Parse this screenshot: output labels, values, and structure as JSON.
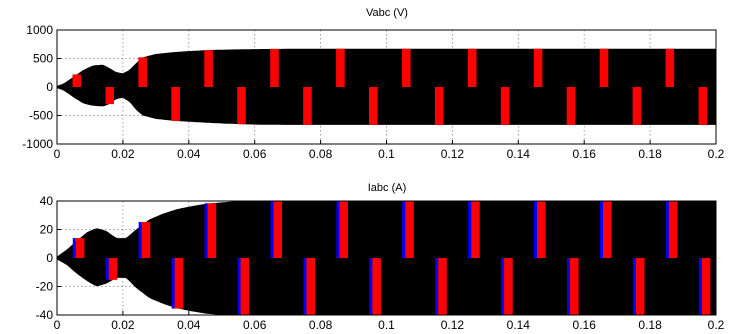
{
  "chart_data": [
    {
      "type": "line",
      "title": "Vabc (V)",
      "xlim": [
        0,
        0.2
      ],
      "ylim": [
        -1000,
        1000
      ],
      "x_ticks": [
        "0",
        "0.02",
        "0.04",
        "0.06",
        "0.08",
        "0.1",
        "0.12",
        "0.14",
        "0.16",
        "0.18",
        "0.2"
      ],
      "y_ticks": [
        "-1000",
        "-500",
        "0",
        "500",
        "1000"
      ],
      "grid": true,
      "fundamental_hz": 50,
      "envelope": {
        "t": [
          0,
          0.002,
          0.005,
          0.008,
          0.011,
          0.014,
          0.016,
          0.018,
          0.02,
          0.022,
          0.024,
          0.026,
          0.03,
          0.035,
          0.04,
          0.045,
          0.05,
          0.055,
          0.06,
          0.07,
          0.08,
          0.2
        ],
        "upper": [
          20,
          60,
          180,
          300,
          380,
          390,
          330,
          260,
          240,
          300,
          420,
          520,
          580,
          610,
          630,
          645,
          655,
          660,
          665,
          670,
          670,
          670
        ],
        "lower": [
          -20,
          -60,
          -180,
          -290,
          -330,
          -340,
          -300,
          -210,
          -190,
          -260,
          -400,
          -500,
          -560,
          -590,
          -610,
          -625,
          -640,
          -650,
          -660,
          -665,
          -665,
          -665
        ]
      },
      "series": [
        {
          "color": "#000000"
        },
        {
          "color": "#ff0000"
        }
      ]
    },
    {
      "type": "line",
      "title": "Iabc (A)",
      "xlim": [
        0,
        0.2
      ],
      "ylim": [
        -40,
        40
      ],
      "x_ticks": [
        "0",
        "0.02",
        "0.04",
        "0.06",
        "0.08",
        "0.1",
        "0.12",
        "0.14",
        "0.16",
        "0.18",
        "0.2"
      ],
      "y_ticks": [
        "-40",
        "-20",
        "0",
        "20",
        "40"
      ],
      "grid": true,
      "fundamental_hz": 50,
      "envelope": {
        "t": [
          0,
          0.003,
          0.006,
          0.009,
          0.012,
          0.015,
          0.018,
          0.021,
          0.024,
          0.028,
          0.032,
          0.036,
          0.04,
          0.045,
          0.05,
          0.055,
          0.06,
          0.2
        ],
        "upper": [
          1,
          6,
          12,
          18,
          21,
          19,
          14,
          14,
          20,
          27,
          31,
          34,
          36,
          38,
          39,
          40,
          40,
          40
        ],
        "lower": [
          -1,
          -5,
          -11,
          -16,
          -20,
          -18,
          -14,
          -14,
          -21,
          -28,
          -32,
          -35,
          -37,
          -39,
          -40,
          -40,
          -40,
          -40
        ]
      },
      "series": [
        {
          "color": "#000000"
        },
        {
          "color": "#ff0000"
        },
        {
          "color": "#0000ff"
        }
      ]
    }
  ]
}
